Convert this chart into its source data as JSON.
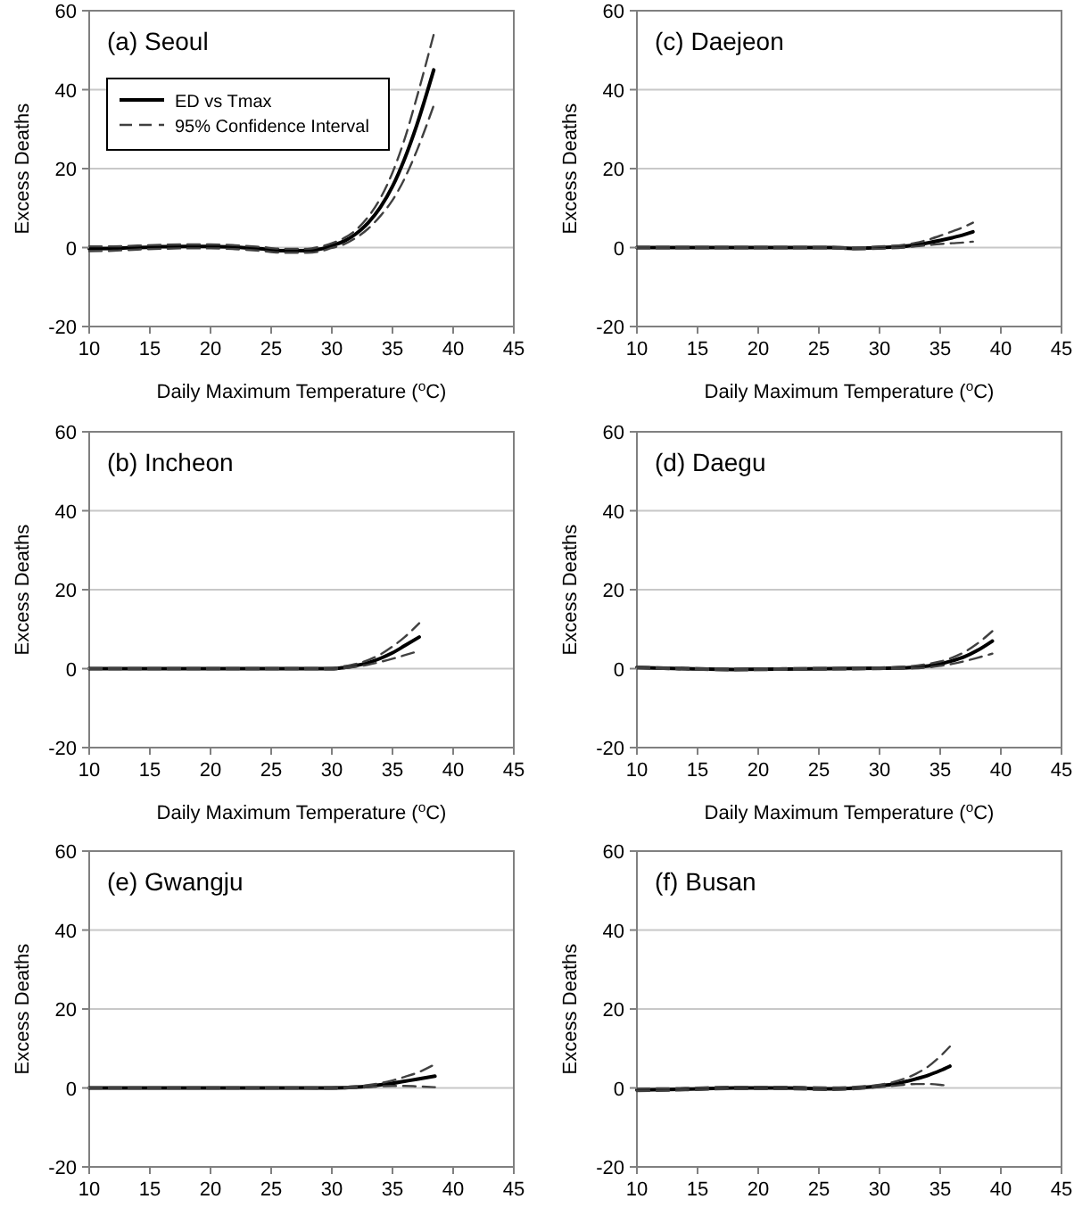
{
  "chart_data": [
    {
      "type": "line",
      "title": "(a) Seoul",
      "xlabel": "Daily Maximum Temperature ($^{o}$C)",
      "ylabel": "Excess Deaths",
      "xlim": [
        10,
        45
      ],
      "xticks": [
        10,
        15,
        20,
        25,
        30,
        35,
        40,
        45
      ],
      "ylim": [
        -20,
        60
      ],
      "yticks": [
        -20,
        0,
        20,
        40,
        60
      ],
      "grid": "y",
      "legend": "top left",
      "x": [
        10,
        12,
        14,
        16,
        18,
        20,
        22,
        24,
        26,
        28,
        29,
        30,
        31,
        32,
        33,
        34,
        35,
        36,
        37,
        38.4
      ],
      "series": [
        {
          "name": "ED vs Tmax",
          "color": "#000000",
          "line_style": "solid",
          "values": [
            -0.3,
            -0.2,
            0,
            0.2,
            0.3,
            0.3,
            0.1,
            -0.3,
            -0.8,
            -0.8,
            -0.4,
            0.5,
            1.6,
            3.5,
            6.3,
            10.2,
            15.5,
            22.5,
            31,
            45
          ]
        },
        {
          "name": "95% Confidence Interval",
          "color": "#404040",
          "line_style": "dashed",
          "values": [
            0.3,
            0.3,
            0.5,
            0.7,
            0.8,
            0.8,
            0.6,
            0.2,
            -0.3,
            -0.3,
            0.2,
            1.1,
            2.4,
            4.5,
            7.8,
            12.5,
            19,
            27.5,
            38,
            54
          ]
        },
        {
          "color": "#404040",
          "line_style": "dashed",
          "values": [
            -0.9,
            -0.8,
            -0.5,
            -0.3,
            -0.2,
            -0.2,
            -0.4,
            -0.8,
            -1.3,
            -1.3,
            -1,
            -0.1,
            0.8,
            2.5,
            4.8,
            8,
            12,
            17.5,
            24.5,
            36
          ]
        }
      ]
    },
    {
      "type": "line",
      "title": "(c) Daejeon",
      "xlabel": "Daily Maximum Temperature ($^{o}$C)",
      "ylabel": "Excess Deaths",
      "xlim": [
        10,
        45
      ],
      "xticks": [
        10,
        15,
        20,
        25,
        30,
        35,
        40,
        45
      ],
      "ylim": [
        -20,
        60
      ],
      "yticks": [
        -20,
        0,
        20,
        40,
        60
      ],
      "grid": "y",
      "x": [
        10,
        14,
        18,
        22,
        26,
        28,
        30,
        32,
        33,
        34,
        35,
        36,
        37,
        37.7
      ],
      "series": [
        {
          "color": "#000000",
          "line_style": "solid",
          "values": [
            0,
            0,
            0,
            0,
            0,
            -0.2,
            0,
            0.3,
            0.7,
            1.2,
            1.8,
            2.5,
            3.3,
            4
          ]
        },
        {
          "color": "#404040",
          "line_style": "dashed",
          "values": [
            0.2,
            0.2,
            0.2,
            0.2,
            0.2,
            0,
            0.3,
            0.7,
            1.2,
            2,
            3,
            4.1,
            5.3,
            6.3
          ]
        },
        {
          "color": "#404040",
          "line_style": "dashed",
          "values": [
            -0.2,
            -0.2,
            -0.2,
            -0.2,
            -0.2,
            -0.4,
            -0.3,
            0,
            0.3,
            0.6,
            0.9,
            1.1,
            1.3,
            1.5
          ]
        }
      ]
    },
    {
      "type": "line",
      "title": "(b) Incheon",
      "xlabel": "Daily Maximum Temperature ($^{o}$C)",
      "ylabel": "Excess Deaths",
      "xlim": [
        10,
        45
      ],
      "xticks": [
        10,
        15,
        20,
        25,
        30,
        35,
        40,
        45
      ],
      "ylim": [
        -20,
        60
      ],
      "yticks": [
        -20,
        0,
        20,
        40,
        60
      ],
      "grid": "y",
      "x": [
        10,
        14,
        18,
        22,
        26,
        28,
        30,
        31,
        32,
        33,
        34,
        35,
        36,
        37.2
      ],
      "series": [
        {
          "color": "#000000",
          "line_style": "solid",
          "values": [
            0,
            0,
            0,
            0,
            0,
            0,
            0,
            0.3,
            0.8,
            1.5,
            2.6,
            4,
            5.8,
            8
          ]
        },
        {
          "color": "#404040",
          "line_style": "dashed",
          "values": [
            0.1,
            0.1,
            0.1,
            0.1,
            0.1,
            0.1,
            0.2,
            0.6,
            1.2,
            2.2,
            3.6,
            5.6,
            8,
            11.5
          ]
        },
        {
          "color": "#404040",
          "line_style": "dashed",
          "values": [
            -0.1,
            -0.1,
            -0.1,
            -0.1,
            -0.1,
            -0.1,
            -0.2,
            0.1,
            0.5,
            1,
            1.7,
            2.5,
            3.4,
            4.5
          ]
        }
      ]
    },
    {
      "type": "line",
      "title": "(d) Daegu",
      "xlabel": "Daily Maximum Temperature ($^{o}$C)",
      "ylabel": "Excess Deaths",
      "xlim": [
        10,
        45
      ],
      "xticks": [
        10,
        15,
        20,
        25,
        30,
        35,
        40,
        45
      ],
      "ylim": [
        -20,
        60
      ],
      "yticks": [
        -20,
        0,
        20,
        40,
        60
      ],
      "grid": "y",
      "x": [
        10,
        14,
        18,
        22,
        26,
        30,
        32,
        34,
        35,
        36,
        37,
        38,
        39.3
      ],
      "series": [
        {
          "color": "#000000",
          "line_style": "solid",
          "values": [
            0.3,
            0,
            -0.2,
            -0.1,
            0,
            0.1,
            0.2,
            0.7,
            1.2,
            2,
            3,
            4.5,
            7
          ]
        },
        {
          "color": "#404040",
          "line_style": "dashed",
          "values": [
            0.5,
            0.2,
            0,
            0.1,
            0.2,
            0.3,
            0.5,
            1.2,
            1.8,
            2.8,
            4.2,
            6.2,
            9.5
          ]
        },
        {
          "color": "#404040",
          "line_style": "dashed",
          "values": [
            0.1,
            -0.2,
            -0.4,
            -0.3,
            -0.2,
            -0.1,
            0,
            0.3,
            0.7,
            1.2,
            1.9,
            2.7,
            3.8
          ]
        }
      ]
    },
    {
      "type": "line",
      "title": "(e) Gwangju",
      "ylabel": "Excess Deaths",
      "xlim": [
        10,
        45
      ],
      "xticks": [
        10,
        15,
        20,
        25,
        30,
        35,
        40,
        45
      ],
      "ylim": [
        -20,
        60
      ],
      "yticks": [
        -20,
        0,
        20,
        40,
        60
      ],
      "grid": "y",
      "x": [
        10,
        14,
        18,
        22,
        26,
        30,
        32,
        34,
        35,
        36,
        37,
        38.5
      ],
      "series": [
        {
          "color": "#000000",
          "line_style": "solid",
          "values": [
            0,
            0,
            0,
            0,
            0,
            0,
            0.2,
            0.8,
            1.2,
            1.7,
            2.2,
            3
          ]
        },
        {
          "color": "#404040",
          "line_style": "dashed",
          "values": [
            0.1,
            0.1,
            0.1,
            0.1,
            0.1,
            0.2,
            0.4,
            1.2,
            1.9,
            2.8,
            3.8,
            6
          ]
        },
        {
          "color": "#404040",
          "line_style": "dashed",
          "values": [
            -0.1,
            -0.1,
            -0.1,
            -0.1,
            -0.1,
            -0.2,
            0,
            0.4,
            0.5,
            0.5,
            0.4,
            0.2
          ]
        }
      ]
    },
    {
      "type": "line",
      "title": "(f) Busan",
      "ylabel": "Excess Deaths",
      "xlim": [
        10,
        45
      ],
      "xticks": [
        10,
        15,
        20,
        25,
        30,
        35,
        40,
        45
      ],
      "ylim": [
        -20,
        60
      ],
      "yticks": [
        -20,
        0,
        20,
        40,
        60
      ],
      "grid": "y",
      "x": [
        10,
        14,
        18,
        22,
        26,
        28,
        30,
        31,
        32,
        33,
        34,
        35,
        35.8
      ],
      "series": [
        {
          "color": "#000000",
          "line_style": "solid",
          "values": [
            -0.5,
            -0.3,
            0,
            0,
            -0.2,
            0,
            0.5,
            0.9,
            1.5,
            2.3,
            3.2,
            4.4,
            5.5
          ]
        },
        {
          "color": "#404040",
          "line_style": "dashed",
          "values": [
            -0.2,
            0,
            0.3,
            0.3,
            0.1,
            0.3,
            0.8,
            1.4,
            2.3,
            3.6,
            5.4,
            8,
            10.5
          ]
        },
        {
          "color": "#404040",
          "line_style": "dashed",
          "values": [
            -0.8,
            -0.6,
            -0.3,
            -0.3,
            -0.5,
            -0.3,
            0.2,
            0.5,
            0.8,
            1,
            1,
            0.8,
            0.5
          ]
        }
      ]
    }
  ]
}
